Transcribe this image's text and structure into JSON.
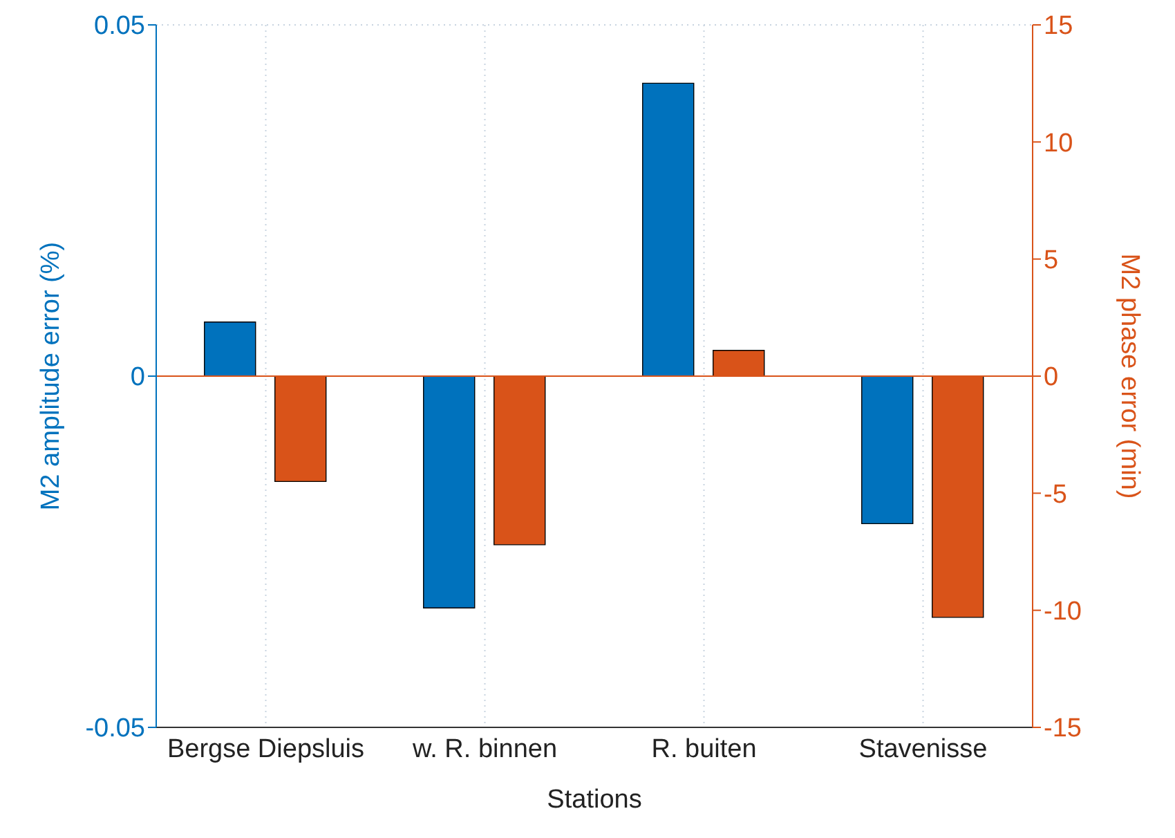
{
  "chart_data": {
    "type": "bar",
    "xlabel": "Stations",
    "ylabel": "M2 amplitude error (%)",
    "y2label": "M2 phase error (min)",
    "categories": [
      "Bergse Diepsluis",
      "w. R. binnen",
      "R. buiten",
      "Stavenisse"
    ],
    "series": [
      {
        "color": "#0072bd",
        "values": [
          0.0077,
          -0.033,
          0.0417,
          -0.021
        ]
      },
      {
        "color": "#d95319",
        "axis": "y2",
        "values": [
          -4.5,
          -7.2,
          1.1,
          -10.3
        ]
      }
    ],
    "ylim": [
      -0.05,
      0.05
    ],
    "yticks": [
      -0.05,
      0,
      0.05
    ],
    "y2lim": [
      -15,
      15
    ],
    "y2ticks": [
      -15,
      -10,
      -5,
      0,
      5,
      10,
      15
    ],
    "ref_lines": [
      {
        "axis": "y",
        "value": 0,
        "color": "#d95319"
      }
    ],
    "grid": true,
    "legend": false
  }
}
